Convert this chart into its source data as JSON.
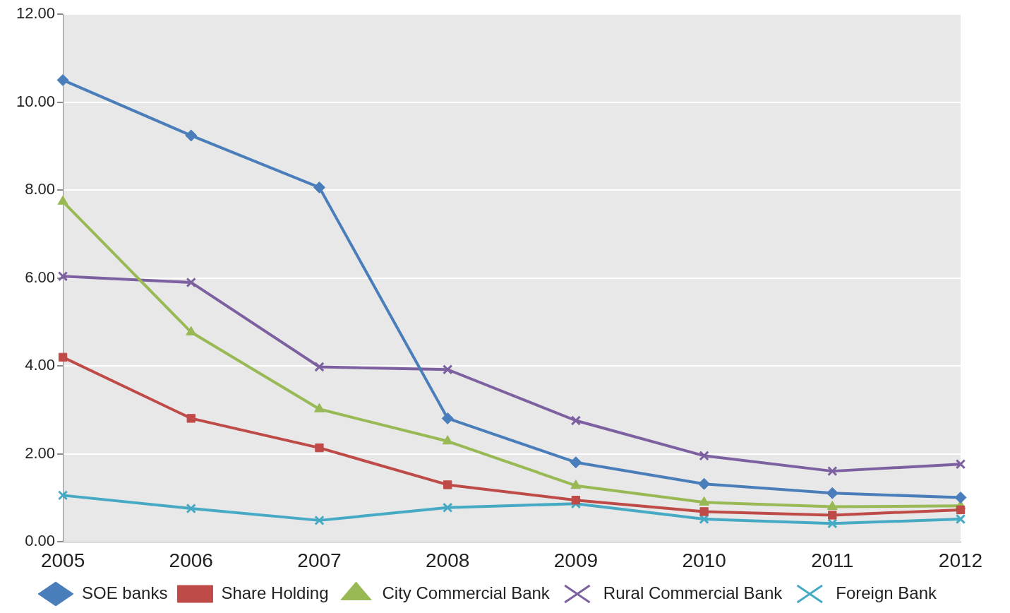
{
  "chart_data": {
    "type": "line",
    "categories": [
      "2005",
      "2006",
      "2007",
      "2008",
      "2009",
      "2010",
      "2011",
      "2012"
    ],
    "series": [
      {
        "name": "SOE banks",
        "color": "#4a7ebb",
        "marker": "diamond",
        "values": [
          10.5,
          9.24,
          8.06,
          2.81,
          1.81,
          1.32,
          1.11,
          1.01
        ]
      },
      {
        "name": "Share Holding",
        "color": "#be4b48",
        "marker": "square",
        "values": [
          4.2,
          2.81,
          2.14,
          1.3,
          0.95,
          0.69,
          0.61,
          0.73
        ]
      },
      {
        "name": "City Commercial Bank",
        "color": "#98b954",
        "marker": "triangle",
        "values": [
          7.74,
          4.77,
          3.02,
          2.29,
          1.28,
          0.9,
          0.8,
          0.82
        ]
      },
      {
        "name": "Rural Commercial Bank",
        "color": "#7d60a0",
        "marker": "cross",
        "values": [
          6.04,
          5.9,
          3.98,
          3.92,
          2.76,
          1.96,
          1.61,
          1.77
        ]
      },
      {
        "name": "Foreign Bank",
        "color": "#46aac5",
        "marker": "cross",
        "values": [
          1.06,
          0.76,
          0.49,
          0.78,
          0.87,
          0.52,
          0.42,
          0.52
        ]
      }
    ],
    "ylim": [
      0,
      12
    ],
    "yticks": [
      {
        "value": 0,
        "label": "0.00"
      },
      {
        "value": 2,
        "label": "2.00"
      },
      {
        "value": 4,
        "label": "4.00"
      },
      {
        "value": 6,
        "label": "6.00"
      },
      {
        "value": 8,
        "label": "8.00"
      },
      {
        "value": 10,
        "label": "10.00"
      },
      {
        "value": 12,
        "label": "12.00"
      }
    ],
    "grid": "y",
    "legend": "bottom",
    "line_style": "solid"
  }
}
